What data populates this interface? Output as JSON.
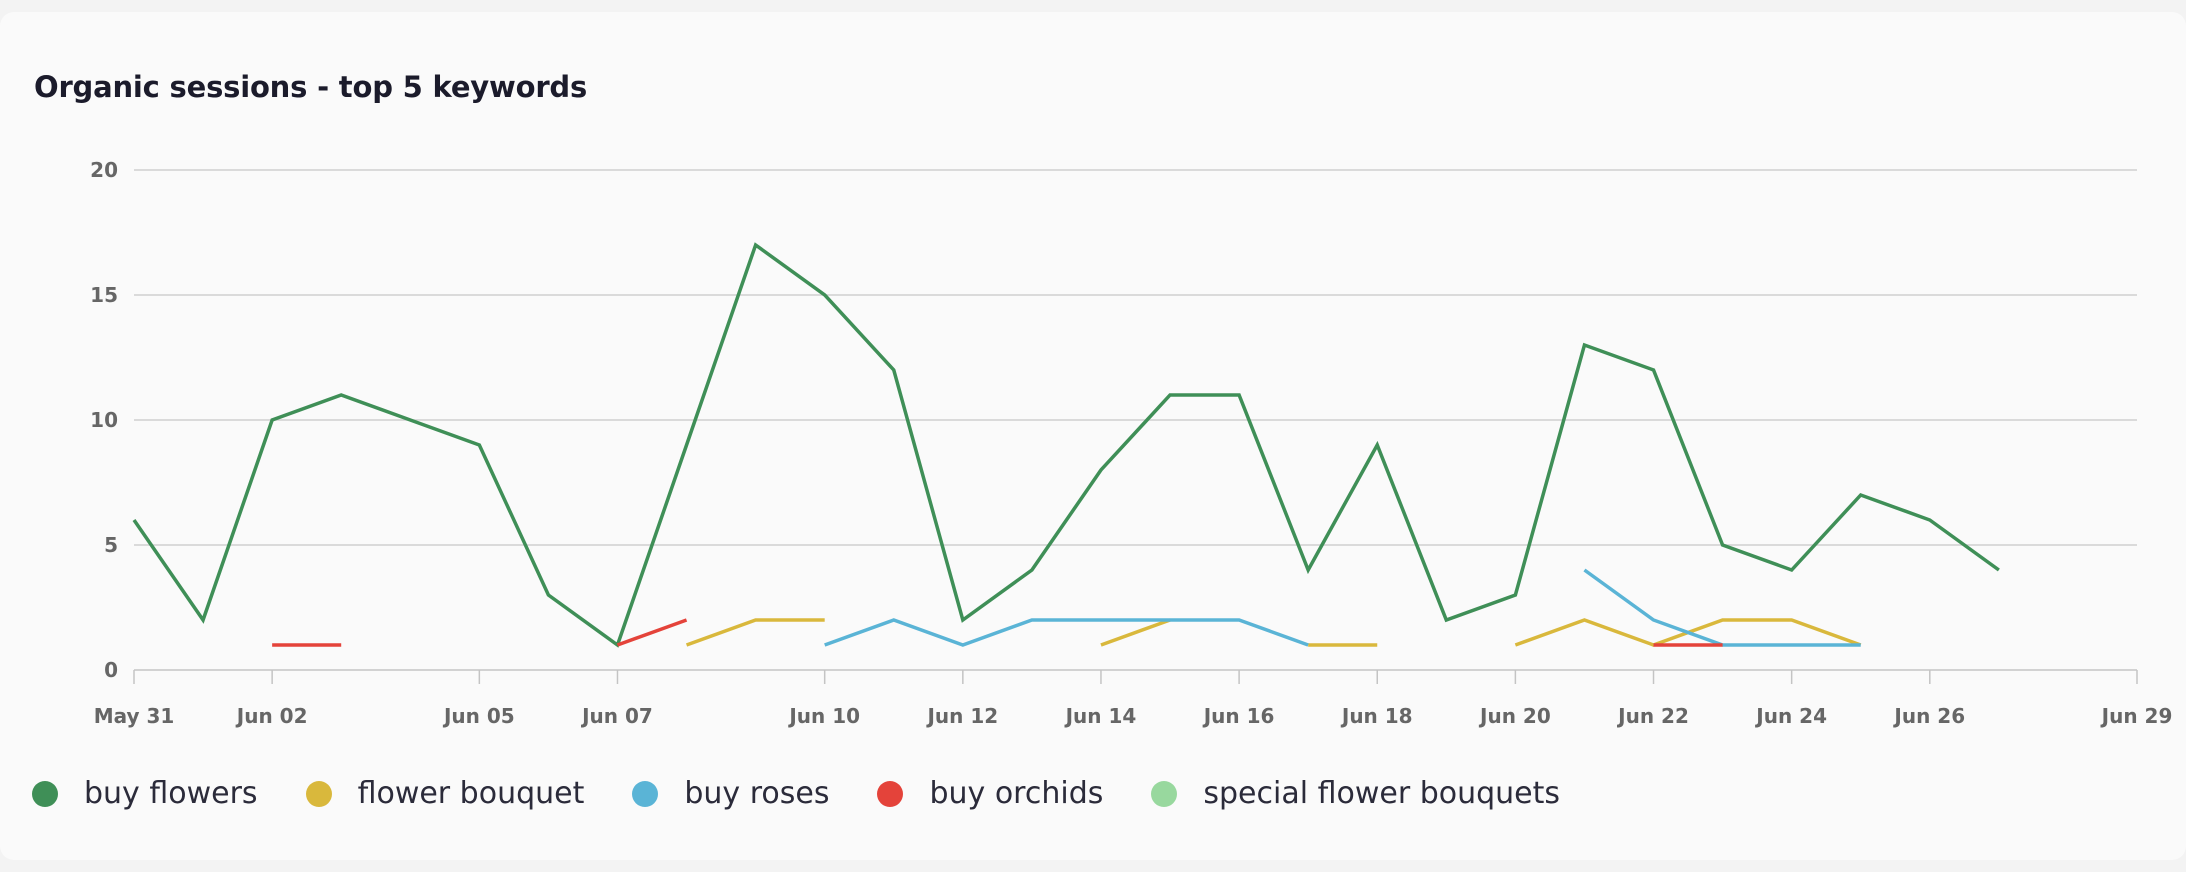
{
  "chart_data": {
    "type": "line",
    "title": "Organic sessions - top 5 keywords",
    "ylim": [
      0,
      20
    ],
    "yticks": [
      0,
      5,
      10,
      15,
      20
    ],
    "x": [
      "May 31",
      "Jun 01",
      "Jun 02",
      "Jun 03",
      "Jun 04",
      "Jun 05",
      "Jun 06",
      "Jun 07",
      "Jun 08",
      "Jun 09",
      "Jun 10",
      "Jun 11",
      "Jun 12",
      "Jun 13",
      "Jun 14",
      "Jun 15",
      "Jun 16",
      "Jun 17",
      "Jun 18",
      "Jun 19",
      "Jun 20",
      "Jun 21",
      "Jun 22",
      "Jun 23",
      "Jun 24",
      "Jun 25",
      "Jun 26",
      "Jun 27",
      "Jun 28",
      "Jun 29"
    ],
    "xtick_labels": [
      "May 31",
      "Jun 02",
      "Jun 05",
      "Jun 07",
      "Jun 10",
      "Jun 12",
      "Jun 14",
      "Jun 16",
      "Jun 18",
      "Jun 20",
      "Jun 22",
      "Jun 24",
      "Jun 26",
      "Jun 29"
    ],
    "series": [
      {
        "name": "buy flowers",
        "color": "#3f8f57",
        "values": [
          6,
          2,
          10,
          11,
          10,
          9,
          3,
          1,
          9,
          17,
          15,
          12,
          2,
          4,
          8,
          11,
          11,
          4,
          9,
          2,
          3,
          13,
          12,
          5,
          4,
          7,
          6,
          4,
          null,
          null
        ]
      },
      {
        "name": "flower bouquet",
        "color": "#d9b83c",
        "values": [
          null,
          null,
          null,
          null,
          null,
          null,
          null,
          null,
          1,
          2,
          2,
          null,
          null,
          null,
          1,
          2,
          null,
          1,
          1,
          null,
          1,
          2,
          1,
          2,
          2,
          1,
          null,
          null,
          null,
          null
        ]
      },
      {
        "name": "buy roses",
        "color": "#5ab4d6",
        "values": [
          null,
          null,
          null,
          null,
          null,
          null,
          null,
          null,
          null,
          null,
          1,
          2,
          1,
          2,
          2,
          2,
          2,
          1,
          null,
          null,
          null,
          4,
          2,
          1,
          1,
          1,
          null,
          null,
          null,
          null
        ]
      },
      {
        "name": "buy orchids",
        "color": "#e4433a",
        "values": [
          null,
          null,
          1,
          1,
          null,
          null,
          null,
          1,
          2,
          null,
          null,
          null,
          null,
          null,
          null,
          null,
          null,
          null,
          null,
          null,
          null,
          null,
          1,
          1,
          null,
          null,
          null,
          null,
          null,
          null
        ]
      },
      {
        "name": "special flower bouquets",
        "color": "#98d89e",
        "values": [
          null,
          null,
          null,
          null,
          null,
          null,
          null,
          null,
          null,
          null,
          null,
          null,
          null,
          null,
          null,
          null,
          null,
          null,
          null,
          null,
          null,
          null,
          null,
          null,
          null,
          null,
          null,
          null,
          null,
          null
        ]
      }
    ],
    "legend_position": "bottom-left",
    "grid": true
  }
}
